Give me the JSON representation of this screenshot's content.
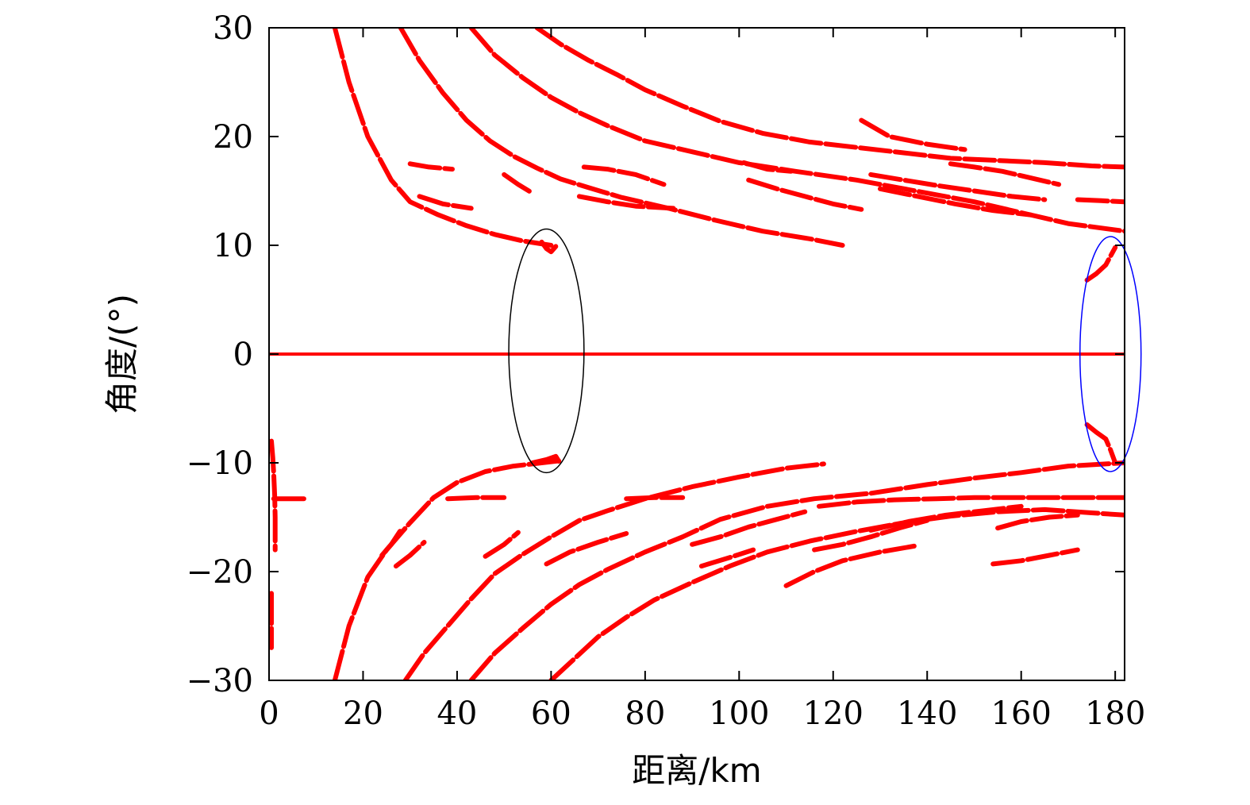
{
  "chart_data": {
    "type": "scatter",
    "xlabel": "距离/km",
    "ylabel": "角度/(°)",
    "xlim": [
      0,
      182
    ],
    "ylim": [
      -30,
      30
    ],
    "x_ticks": [
      0,
      20,
      40,
      60,
      80,
      100,
      120,
      140,
      160,
      180
    ],
    "y_ticks": [
      -30,
      -20,
      -10,
      0,
      10,
      20,
      30
    ],
    "x_tick_labels": [
      "0",
      "20",
      "40",
      "60",
      "80",
      "100",
      "120",
      "140",
      "160",
      "180"
    ],
    "y_tick_labels": [
      "−30",
      "−20",
      "−10",
      "0",
      "10",
      "20",
      "30"
    ],
    "grid": false,
    "marker_color": "#ff0000",
    "series": [
      {
        "label": "zero-angle line",
        "points": [
          [
            0,
            0
          ],
          [
            182,
            0
          ]
        ]
      },
      {
        "label": "upper curve 1",
        "points": [
          [
            14,
            30
          ],
          [
            17,
            25
          ],
          [
            21,
            20
          ],
          [
            26,
            16
          ],
          [
            30,
            14
          ],
          [
            36,
            12.8
          ],
          [
            42,
            11.8
          ],
          [
            48,
            11
          ],
          [
            54,
            10.4
          ],
          [
            60,
            10
          ]
        ]
      },
      {
        "label": "upper curve 2",
        "points": [
          [
            28,
            30
          ],
          [
            32,
            27
          ],
          [
            37,
            24
          ],
          [
            42,
            21.5
          ],
          [
            47,
            19.6
          ],
          [
            52,
            18.2
          ],
          [
            57,
            17.1
          ],
          [
            62,
            16.1
          ],
          [
            68,
            15.3
          ],
          [
            75,
            14.4
          ],
          [
            85,
            13.4
          ],
          [
            95,
            12.3
          ],
          [
            105,
            11.3
          ],
          [
            115,
            10.6
          ],
          [
            122,
            10
          ]
        ]
      },
      {
        "label": "upper curve 3",
        "points": [
          [
            43,
            30
          ],
          [
            48,
            27.5
          ],
          [
            54,
            25.4
          ],
          [
            60,
            23.6
          ],
          [
            66,
            22.2
          ],
          [
            72,
            21
          ],
          [
            80,
            19.6
          ],
          [
            90,
            18.6
          ],
          [
            100,
            17.6
          ],
          [
            112,
            16.8
          ],
          [
            125,
            16
          ],
          [
            140,
            14.8
          ],
          [
            150,
            14
          ],
          [
            160,
            13
          ],
          [
            170,
            12
          ],
          [
            182,
            11.3
          ]
        ]
      },
      {
        "label": "upper curve 4",
        "points": [
          [
            57,
            30
          ],
          [
            62,
            28.5
          ],
          [
            68,
            27
          ],
          [
            74,
            25.7
          ],
          [
            80,
            24.3
          ],
          [
            88,
            22.8
          ],
          [
            96,
            21.4
          ],
          [
            105,
            20.3
          ],
          [
            115,
            19.5
          ],
          [
            125,
            19
          ],
          [
            135,
            18.5
          ],
          [
            145,
            18
          ],
          [
            155,
            17.8
          ],
          [
            165,
            17.6
          ],
          [
            175,
            17.3
          ],
          [
            182,
            17.2
          ]
        ]
      },
      {
        "label": "upper short segments a",
        "points": [
          [
            30,
            17.5
          ],
          [
            34,
            17.2
          ],
          [
            39,
            17
          ]
        ]
      },
      {
        "label": "upper short segments b",
        "points": [
          [
            32,
            14.5
          ],
          [
            37,
            13.8
          ],
          [
            43,
            13.4
          ]
        ]
      },
      {
        "label": "upper short segments c",
        "points": [
          [
            50,
            16.5
          ],
          [
            53,
            15.6
          ],
          [
            56,
            14.8
          ]
        ]
      },
      {
        "label": "upper cluster 1",
        "points": [
          [
            67,
            17.2
          ],
          [
            72,
            17
          ],
          [
            78,
            16.5
          ],
          [
            84,
            15.6
          ]
        ]
      },
      {
        "label": "upper cluster 2",
        "points": [
          [
            66,
            14.5
          ],
          [
            72,
            14
          ],
          [
            78,
            13.6
          ],
          [
            86,
            13.4
          ]
        ]
      },
      {
        "label": "upper cluster 3",
        "points": [
          [
            101,
            17.6
          ],
          [
            106,
            17
          ],
          [
            111,
            16.8
          ]
        ]
      },
      {
        "label": "upper cluster 4",
        "points": [
          [
            102,
            16
          ],
          [
            108,
            15.2
          ],
          [
            114,
            14.5
          ],
          [
            120,
            13.8
          ],
          [
            126,
            13.3
          ]
        ]
      },
      {
        "label": "upper cluster 5",
        "points": [
          [
            128,
            16.5
          ],
          [
            135,
            16
          ],
          [
            142,
            15.5
          ],
          [
            150,
            15
          ],
          [
            158,
            14.5
          ],
          [
            165,
            14.2
          ]
        ]
      },
      {
        "label": "upper cluster 6",
        "points": [
          [
            126,
            21.5
          ],
          [
            132,
            20
          ],
          [
            140,
            19.3
          ],
          [
            148,
            18.8
          ]
        ]
      },
      {
        "label": "upper cluster 7",
        "points": [
          [
            145,
            17.5
          ],
          [
            150,
            17.2
          ],
          [
            156,
            16.8
          ],
          [
            162,
            16.2
          ],
          [
            168,
            15.6
          ]
        ]
      },
      {
        "label": "upper cluster 8",
        "points": [
          [
            130,
            15.2
          ],
          [
            138,
            14.5
          ],
          [
            146,
            13.8
          ],
          [
            154,
            13.2
          ],
          [
            162,
            12.8
          ]
        ]
      },
      {
        "label": "upper cluster 9",
        "points": [
          [
            172,
            14.2
          ],
          [
            177,
            14.1
          ],
          [
            182,
            14
          ]
        ]
      },
      {
        "label": "upper hook at 60 km",
        "points": [
          [
            58,
            10.3
          ],
          [
            59,
            9.7
          ],
          [
            60,
            9.4
          ],
          [
            61,
            9.9
          ]
        ]
      },
      {
        "label": "upper hook at 180 km",
        "points": [
          [
            174,
            6.8
          ],
          [
            176,
            7.4
          ],
          [
            178,
            8.2
          ],
          [
            179,
            9
          ],
          [
            180,
            9.8
          ]
        ]
      },
      {
        "label": "lower curve 1",
        "points": [
          [
            14,
            -30
          ],
          [
            17,
            -25
          ],
          [
            21,
            -20.5
          ],
          [
            25,
            -18
          ],
          [
            30,
            -15.5
          ],
          [
            35,
            -13.2
          ],
          [
            40,
            -11.8
          ],
          [
            46,
            -10.8
          ],
          [
            52,
            -10.3
          ],
          [
            58,
            -10
          ],
          [
            62,
            -9.8
          ]
        ]
      },
      {
        "label": "lower curve 2",
        "points": [
          [
            29,
            -30
          ],
          [
            33,
            -27.5
          ],
          [
            38,
            -25
          ],
          [
            43,
            -22.5
          ],
          [
            48,
            -20.2
          ],
          [
            54,
            -18.4
          ],
          [
            60,
            -16.8
          ],
          [
            66,
            -15.3
          ],
          [
            72,
            -14.4
          ],
          [
            80,
            -13.3
          ],
          [
            90,
            -12.2
          ],
          [
            100,
            -11.3
          ],
          [
            110,
            -10.5
          ],
          [
            118,
            -10.1
          ]
        ]
      },
      {
        "label": "lower curve 3",
        "points": [
          [
            43,
            -30
          ],
          [
            48,
            -27.5
          ],
          [
            54,
            -25.2
          ],
          [
            60,
            -23
          ],
          [
            66,
            -21.2
          ],
          [
            72,
            -19.8
          ],
          [
            80,
            -18.2
          ],
          [
            88,
            -16.8
          ],
          [
            96,
            -15.2
          ],
          [
            106,
            -14
          ],
          [
            116,
            -13.3
          ],
          [
            128,
            -12.8
          ],
          [
            140,
            -12
          ],
          [
            150,
            -11.4
          ],
          [
            160,
            -10.9
          ],
          [
            170,
            -10.3
          ],
          [
            182,
            -10
          ]
        ]
      },
      {
        "label": "lower curve 4",
        "points": [
          [
            60,
            -30
          ],
          [
            65,
            -28
          ],
          [
            70,
            -26
          ],
          [
            76,
            -24.2
          ],
          [
            82,
            -22.6
          ],
          [
            90,
            -21
          ],
          [
            98,
            -19.5
          ],
          [
            106,
            -18.2
          ],
          [
            115,
            -17.2
          ],
          [
            125,
            -16.3
          ],
          [
            135,
            -15.5
          ],
          [
            145,
            -14.9
          ],
          [
            155,
            -14.5
          ],
          [
            165,
            -14.3
          ],
          [
            175,
            -14.6
          ],
          [
            182,
            -14.8
          ]
        ]
      },
      {
        "label": "lower short segments a",
        "points": [
          [
            24,
            -18.5
          ],
          [
            26,
            -17.5
          ],
          [
            28,
            -16.2
          ]
        ]
      },
      {
        "label": "lower short segments b",
        "points": [
          [
            27,
            -19.5
          ],
          [
            30,
            -18.5
          ],
          [
            33,
            -17.3
          ]
        ]
      },
      {
        "label": "lower short segments c",
        "points": [
          [
            46,
            -18.6
          ],
          [
            50,
            -17.5
          ],
          [
            53,
            -16.4
          ]
        ]
      },
      {
        "label": "lower cluster 1",
        "points": [
          [
            59,
            -19.3
          ],
          [
            64,
            -18.2
          ],
          [
            70,
            -17.3
          ],
          [
            76,
            -16.5
          ]
        ]
      },
      {
        "label": "lower cluster 2",
        "points": [
          [
            90,
            -17.5
          ],
          [
            96,
            -16.8
          ],
          [
            102,
            -15.9
          ],
          [
            108,
            -15.2
          ],
          [
            114,
            -14.5
          ]
        ]
      },
      {
        "label": "lower cluster 3",
        "points": [
          [
            92,
            -19.5
          ],
          [
            98,
            -18.7
          ],
          [
            103,
            -18
          ]
        ]
      },
      {
        "label": "lower cluster 4",
        "points": [
          [
            110,
            -21.3
          ],
          [
            116,
            -20
          ],
          [
            122,
            -19
          ],
          [
            130,
            -18.2
          ],
          [
            138,
            -17.6
          ]
        ]
      },
      {
        "label": "lower cluster 5",
        "points": [
          [
            116,
            -18
          ],
          [
            122,
            -17.5
          ],
          [
            128,
            -16.8
          ],
          [
            134,
            -16
          ],
          [
            140,
            -15.3
          ]
        ]
      },
      {
        "label": "lower cluster 6",
        "points": [
          [
            128,
            -16.2
          ],
          [
            136,
            -15.4
          ],
          [
            144,
            -14.8
          ],
          [
            152,
            -14.4
          ],
          [
            160,
            -14
          ]
        ]
      },
      {
        "label": "lower cluster 7",
        "points": [
          [
            155,
            -16
          ],
          [
            160,
            -15.4
          ],
          [
            166,
            -15
          ],
          [
            172,
            -14.8
          ]
        ]
      },
      {
        "label": "lower cluster 8",
        "points": [
          [
            154,
            -19.3
          ],
          [
            160,
            -19
          ],
          [
            166,
            -18.5
          ],
          [
            172,
            -18
          ]
        ]
      },
      {
        "label": "lower cluster 9",
        "points": [
          [
            117,
            -14
          ],
          [
            125,
            -13.6
          ],
          [
            133,
            -13.4
          ],
          [
            142,
            -13.3
          ],
          [
            150,
            -13.2
          ],
          [
            160,
            -13.2
          ],
          [
            170,
            -13.2
          ],
          [
            182,
            -13.2
          ]
        ]
      },
      {
        "label": "lower cluster 10",
        "points": [
          [
            38,
            -13.3
          ],
          [
            44,
            -13.2
          ],
          [
            50,
            -13.2
          ]
        ]
      },
      {
        "label": "lower cluster 11",
        "points": [
          [
            76,
            -13.3
          ],
          [
            82,
            -13.2
          ],
          [
            88,
            -13.2
          ]
        ]
      },
      {
        "label": "lower hook at 60 km",
        "points": [
          [
            56,
            -10
          ],
          [
            59,
            -9.7
          ],
          [
            61,
            -9.4
          ],
          [
            62,
            -10.1
          ]
        ]
      },
      {
        "label": "lower hook at 180 km",
        "points": [
          [
            174,
            -6.5
          ],
          [
            176,
            -7.2
          ],
          [
            178,
            -7.8
          ],
          [
            179,
            -8.8
          ],
          [
            180,
            -10
          ]
        ]
      },
      {
        "label": "near origin vertical",
        "points": [
          [
            0.5,
            -8
          ],
          [
            0.8,
            -9.5
          ],
          [
            1,
            -11
          ],
          [
            1.2,
            -13
          ],
          [
            1.3,
            -15
          ],
          [
            1.3,
            -18
          ]
        ]
      },
      {
        "label": "near origin horizontal",
        "points": [
          [
            1,
            -13.3
          ],
          [
            4,
            -13.3
          ],
          [
            8,
            -13.3
          ]
        ]
      },
      {
        "label": "near origin isolated",
        "points": [
          [
            0.5,
            -22
          ],
          [
            0.5,
            -27
          ]
        ]
      }
    ],
    "annotations": [
      {
        "shape": "ellipse",
        "color": "#000000",
        "center": [
          59,
          0.3
        ],
        "radii": [
          8,
          11.2
        ]
      },
      {
        "shape": "ellipse",
        "color": "#0000ff",
        "center": [
          179,
          0
        ],
        "radii": [
          6.5,
          10.8
        ]
      }
    ]
  }
}
